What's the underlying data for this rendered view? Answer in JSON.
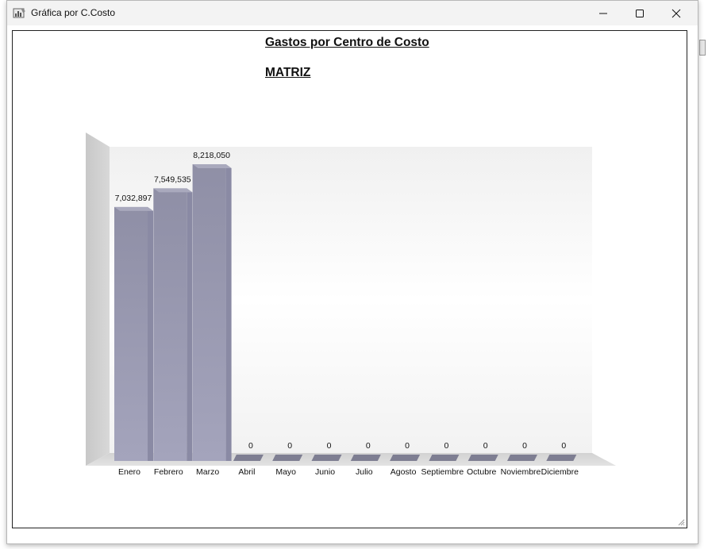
{
  "window": {
    "title": "Gráfica por C.Costo",
    "icon": "chart-app-icon"
  },
  "controls": {
    "minimize_icon": "minimize-icon",
    "maximize_icon": "maximize-icon",
    "close_icon": "close-icon"
  },
  "colors": {
    "bar_front": "#9a9ab0",
    "bar_side": "#8a8aa4",
    "bar_top": "#a9a9bd",
    "wall": "#cfcfcf",
    "floor": "#d6d6d6"
  },
  "chart_data": {
    "type": "bar",
    "title": "Gastos por Centro de Costo",
    "subtitle": "MATRIZ",
    "categories": [
      "Enero",
      "Febrero",
      "Marzo",
      "Abril",
      "Mayo",
      "Junio",
      "Julio",
      "Agosto",
      "Septiembre",
      "Octubre",
      "Noviembre",
      "Diciembre"
    ],
    "values": [
      7032897,
      7549535,
      8218050,
      0,
      0,
      0,
      0,
      0,
      0,
      0,
      0,
      0
    ],
    "value_labels": [
      "7,032,897",
      "7,549,535",
      "8,218,050",
      "0",
      "0",
      "0",
      "0",
      "0",
      "0",
      "0",
      "0",
      "0"
    ],
    "style": "3d",
    "legend": "none",
    "grid": false
  }
}
